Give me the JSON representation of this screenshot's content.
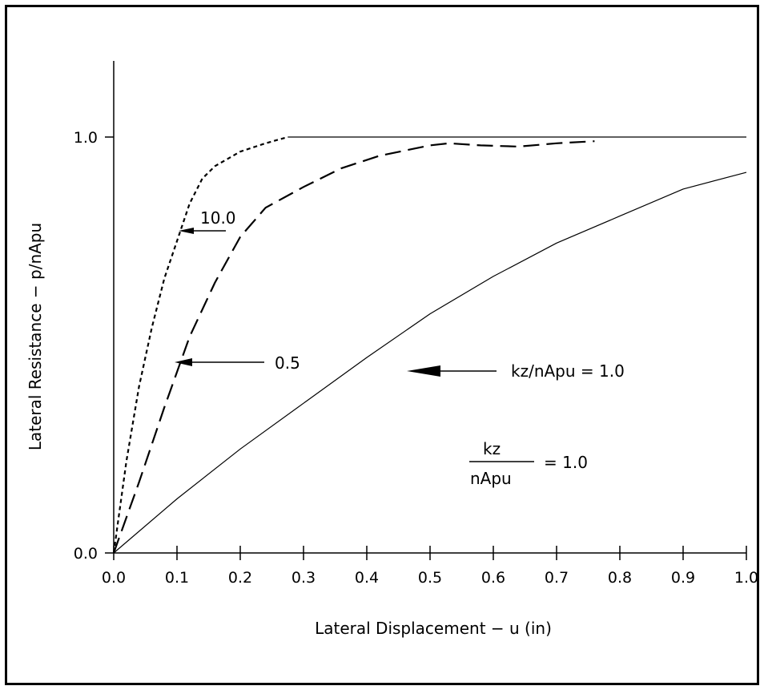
{
  "chart_data": {
    "type": "line",
    "xlabel": "Lateral Displacement  −  u (in)",
    "ylabel": "Lateral Resistance  −  p/nApu",
    "xlim": [
      0.0,
      1.0
    ],
    "ylim": [
      0.0,
      1.0
    ],
    "x_ticks": [
      "0.0",
      "0.1",
      "0.2",
      "0.3",
      "0.4",
      "0.5",
      "0.6",
      "0.7",
      "0.8",
      "0.9",
      "1.0"
    ],
    "y_ticks": [
      "0.0",
      "1.0"
    ],
    "grid": false,
    "series": [
      {
        "name": "10.0",
        "style": "dotted-dash",
        "x": [
          0.0,
          0.02,
          0.04,
          0.06,
          0.08,
          0.1,
          0.12,
          0.14,
          0.16,
          0.2,
          0.24,
          0.275
        ],
        "y": [
          0.0,
          0.22,
          0.4,
          0.54,
          0.66,
          0.75,
          0.84,
          0.9,
          0.93,
          0.965,
          0.985,
          1.0
        ]
      },
      {
        "name": "0.5",
        "style": "long-dash",
        "x": [
          0.0,
          0.04,
          0.08,
          0.12,
          0.16,
          0.2,
          0.24,
          0.3,
          0.36,
          0.42,
          0.5,
          0.53,
          0.58,
          0.64,
          0.7,
          0.76
        ],
        "y": [
          0.0,
          0.17,
          0.35,
          0.52,
          0.65,
          0.76,
          0.83,
          0.88,
          0.925,
          0.955,
          0.98,
          0.985,
          0.98,
          0.977,
          0.985,
          0.99
        ]
      },
      {
        "name": "kz/nApu = 1.0",
        "style": "solid",
        "x": [
          0.0,
          0.1,
          0.2,
          0.3,
          0.4,
          0.5,
          0.6,
          0.7,
          0.8,
          0.9,
          1.0
        ],
        "y": [
          0.0,
          0.13,
          0.25,
          0.36,
          0.47,
          0.575,
          0.665,
          0.745,
          0.81,
          0.875,
          0.915
        ]
      },
      {
        "name": "",
        "style": "solid",
        "x": [
          0.275,
          1.0
        ],
        "y": [
          1.0,
          1.0
        ]
      }
    ],
    "annotations": {
      "label_10": "10.0",
      "label_05": "0.5",
      "label_kz": "kz/nApu  =  1.0",
      "frac_num": "kz",
      "frac_den": "nApu",
      "frac_eq": "=  1.0"
    }
  }
}
